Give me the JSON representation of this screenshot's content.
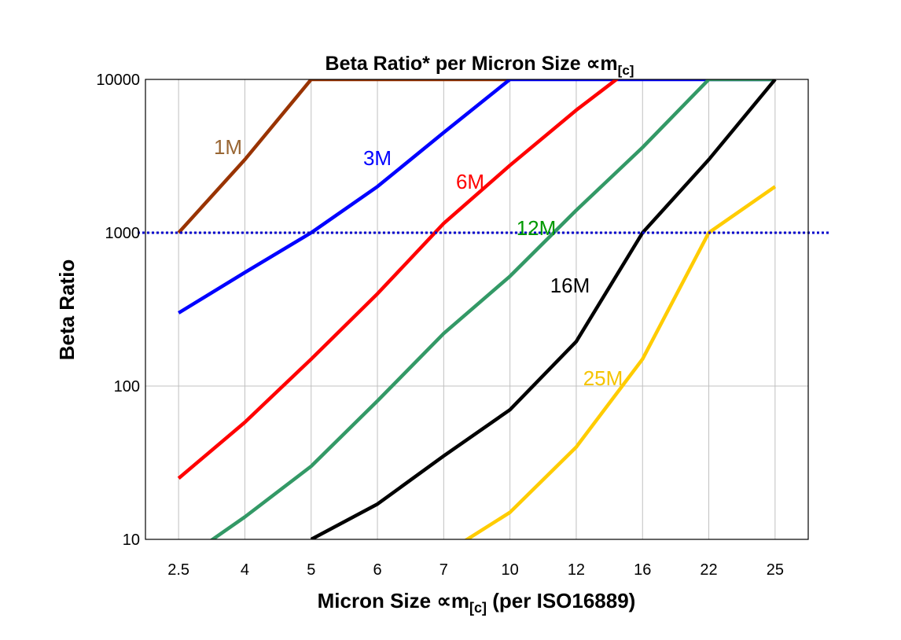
{
  "chart_data": {
    "type": "line",
    "title": {
      "main": "Beta Ratio* per Micron Size ∝m",
      "sub": "[c]"
    },
    "xlabel": {
      "main": "Micron Size ∝m",
      "sub": "[c]",
      "tail": " (per ISO16889)"
    },
    "ylabel": "Beta Ratio",
    "categories": [
      "2.5",
      "4",
      "5",
      "6",
      "7",
      "10",
      "12",
      "16",
      "22",
      "25"
    ],
    "y_scale": "log",
    "ylim": [
      10,
      10000
    ],
    "y_ticks": [
      "10",
      "100",
      "1000",
      "10000"
    ],
    "grid": true,
    "reference_line": {
      "value": 1000,
      "style": "dotted",
      "color": "#0000cc"
    },
    "series": [
      {
        "name": "1M",
        "color": "#993300",
        "label_color": "#996633",
        "values": [
          1000,
          3000,
          10000,
          10000,
          10000,
          10000,
          null,
          null,
          null,
          null
        ]
      },
      {
        "name": "3M",
        "color": "#0000ff",
        "label_color": "#0000ff",
        "values": [
          300,
          550,
          1000,
          2000,
          4500,
          10000,
          10000,
          10000,
          10000,
          10000
        ]
      },
      {
        "name": "6M",
        "color": "#ff0000",
        "label_color": "#ff0000",
        "values": [
          25,
          58,
          150,
          400,
          1150,
          2750,
          6300,
          13500,
          null,
          null
        ]
      },
      {
        "name": "12M",
        "color": "#339966",
        "label_color": "#009900",
        "values": [
          7,
          14,
          30,
          80,
          220,
          520,
          1400,
          3600,
          10000,
          10000
        ]
      },
      {
        "name": "16M",
        "color": "#000000",
        "label_color": "#000000",
        "values": [
          null,
          null,
          10,
          17,
          35,
          70,
          195,
          1000,
          3000,
          10000
        ]
      },
      {
        "name": "25M",
        "color": "#ffcc00",
        "label_color": "#f5c400",
        "values": [
          null,
          null,
          null,
          null,
          8,
          15,
          40,
          150,
          1000,
          2000
        ]
      }
    ]
  }
}
